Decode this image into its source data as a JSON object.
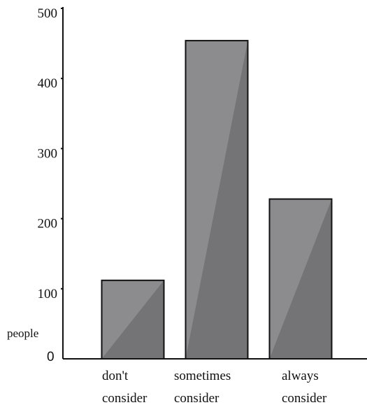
{
  "chart_data": {
    "type": "bar",
    "categories": [
      [
        "don't",
        "consider"
      ],
      [
        "sometimes",
        "consider"
      ],
      [
        "always",
        "consider"
      ]
    ],
    "values": [
      112,
      454,
      228
    ],
    "ylabel": "people",
    "ylim": [
      0,
      500
    ],
    "yticks": [
      "0",
      "100",
      "200",
      "300",
      "400",
      "500"
    ],
    "grid": false,
    "bar_color": "#8c8c8f",
    "bar_shade_color": "#747477",
    "axis_color": "#111111"
  }
}
